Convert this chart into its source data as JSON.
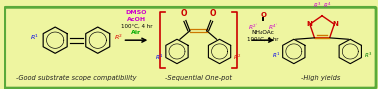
{
  "background_color": "#eef5a0",
  "border_color": "#5aaa3a",
  "border_linewidth": 2.0,
  "fig_width": 3.78,
  "fig_height": 0.89,
  "dpi": 100,
  "label1": "-Good substrate scope compatibility",
  "label2": "-Sequential One-pot",
  "label3": "-High yields",
  "label_color": "#222222",
  "label_fontsize": 4.8,
  "reagent1_line1": "DMSO",
  "reagent1_line2": "AcOH",
  "reagent1_line3": "100°C, 4 hr",
  "reagent1_line4": "Air",
  "reagent1_color1": "#cc00cc",
  "reagent1_color2": "#cc00cc",
  "reagent1_color3": "#000000",
  "reagent1_color4": "#00aa00",
  "reagent2_line1": "NH₄OAc",
  "reagent2_line2": "100°C, 4 hr",
  "reagent2_color1": "#000000",
  "reagent2_color2": "#000000",
  "R_color_blue": "#0000ee",
  "R_color_red": "#dd0000",
  "R_color_magenta": "#cc00cc",
  "R_color_green": "#007700",
  "N_color": "#cc0000",
  "O_color": "#cc0000",
  "bracket_color": "#cc0000",
  "bond_color": "#000000",
  "ring_color": "#000000",
  "carbonyl_color": "#cc7700"
}
